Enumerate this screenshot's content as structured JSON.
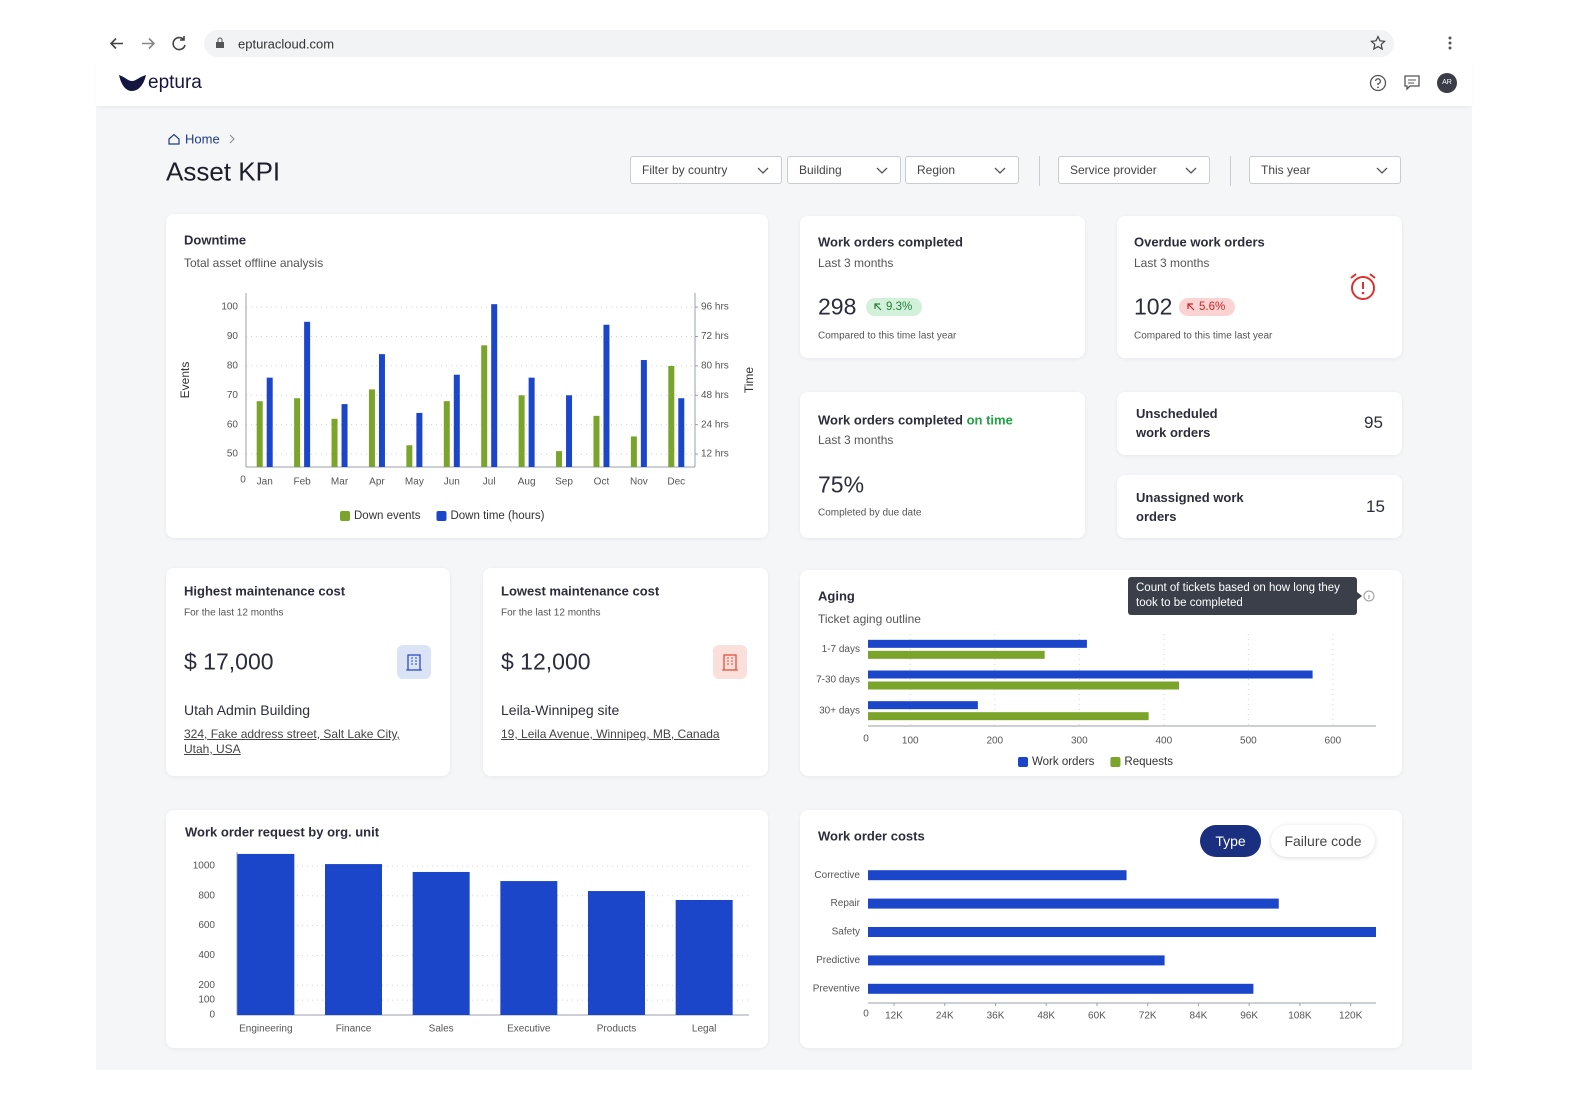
{
  "browser": {
    "url": "epturacloud.com"
  },
  "header": {
    "logo": "eptura",
    "avatar": "AR"
  },
  "breadcrumb": "Home",
  "title": "Asset KPI",
  "filters": [
    "Filter by country",
    "Building",
    "Region",
    "Service provider",
    "This year"
  ],
  "downtime": {
    "type": "bar",
    "title": "Downtime",
    "subtitle": "Total asset offline analysis",
    "y_label": "Events",
    "y2_label": "Time",
    "origin_label": "0",
    "categories": [
      "Jan",
      "Feb",
      "Mar",
      "Apr",
      "May",
      "Jun",
      "Jul",
      "Aug",
      "Sep",
      "Oct",
      "Nov",
      "Dec"
    ],
    "series": [
      {
        "name": "Down events",
        "color": "#7aa52a",
        "values": [
          68,
          69,
          62,
          72,
          53,
          68,
          87,
          70,
          51,
          63,
          56,
          80
        ]
      },
      {
        "name": "Down time (hours)",
        "color": "#1c46c9",
        "values": [
          76,
          95,
          67,
          84,
          64,
          77,
          101,
          76,
          70,
          94,
          82,
          69
        ]
      }
    ],
    "ylim": [
      45.6,
      104.8
    ],
    "yticks": [
      50,
      60,
      70,
      80,
      90,
      100
    ],
    "y2lim": [
      45.6,
      104.8
    ],
    "y2ticks": [
      {
        "value": 50,
        "label": "12 hrs"
      },
      {
        "value": 60,
        "label": "24 hrs"
      },
      {
        "value": 70,
        "label": "48 hrs"
      },
      {
        "value": 80,
        "label": "80 hrs"
      },
      {
        "value": 90,
        "label": "72 hrs"
      },
      {
        "value": 100,
        "label": "96 hrs"
      }
    ],
    "grid": true,
    "legend": "bottom"
  },
  "kpis": {
    "completed": {
      "title": "Work orders completed",
      "subtitle": "Last 3 months",
      "value": "298",
      "change": "9.3%",
      "note": "Compared to this time last year"
    },
    "overdue": {
      "title": "Overdue work orders",
      "subtitle": "Last 3 months",
      "value": "102",
      "change": "5.6%",
      "note": "Compared to this time last year"
    },
    "on_time": {
      "title": "Work orders completed",
      "title_highlight": "on time",
      "subtitle": "Last 3 months",
      "value": "75%",
      "note": "Completed by due date"
    },
    "unscheduled": {
      "title": "Unscheduled work orders",
      "value": "95"
    },
    "unassigned": {
      "title": "Unassigned work orders",
      "value": "15"
    }
  },
  "cost_cards": [
    {
      "title": "Highest maintenance cost",
      "subtitle": "For the last 12 months",
      "value": "$ 17,000",
      "site": "Utah Admin Building",
      "address": "324, Fake address street, Salt Lake City, Utah, USA"
    },
    {
      "title": "Lowest maintenance cost",
      "subtitle": "For the last 12 months",
      "value": "$ 12,000",
      "site": "Leila-Winnipeg site",
      "address": "19, Leila Avenue, Winnipeg, MB, Canada"
    }
  ],
  "aging": {
    "type": "hbar",
    "title": "Aging",
    "subtitle": "Ticket aging outline",
    "tooltip": "Count of tickets based on how long they took to be completed",
    "origin_label": "0",
    "categories": [
      "1-7 days",
      "7-30 days",
      "30+ days"
    ],
    "series": [
      {
        "name": "Work orders",
        "color": "#1c46c9",
        "values": [
          309,
          576,
          180
        ]
      },
      {
        "name": "Requests",
        "color": "#7aa52a",
        "values": [
          259,
          418,
          382
        ]
      }
    ],
    "xlim": [
      50,
      651
    ],
    "xticks": [
      100,
      200,
      300,
      400,
      500,
      600
    ],
    "grid": true,
    "legend": "bottom"
  },
  "org_requests": {
    "type": "bar",
    "title": "Work order request by org. unit",
    "categories": [
      "Engineering",
      "Finance",
      "Sales",
      "Executive",
      "Products",
      "Legal"
    ],
    "values": [
      1081,
      1013,
      960,
      899,
      832,
      772
    ],
    "color": "#1c46c9",
    "ylim": [
      0,
      1094
    ],
    "yticks": [
      0,
      100,
      200,
      400,
      600,
      800,
      1000
    ],
    "grid": true
  },
  "costs": {
    "type": "hbar",
    "title": "Work order costs",
    "toggle": [
      "Type",
      "Failure code"
    ],
    "origin_label": "0",
    "categories": [
      "Corrective",
      "Repair",
      "Safety",
      "Predictive",
      "Preventive"
    ],
    "values": [
      67000,
      103000,
      126000,
      76000,
      97000
    ],
    "color": "#1c46c9",
    "xlim": [
      5846,
      126000
    ],
    "xticks": [
      {
        "value": 12000,
        "label": "12K"
      },
      {
        "value": 24000,
        "label": "24K"
      },
      {
        "value": 36000,
        "label": "36K"
      },
      {
        "value": 48000,
        "label": "48K"
      },
      {
        "value": 60000,
        "label": "60K"
      },
      {
        "value": 72000,
        "label": "72K"
      },
      {
        "value": 84000,
        "label": "84K"
      },
      {
        "value": 96000,
        "label": "96K"
      },
      {
        "value": 108000,
        "label": "108K"
      },
      {
        "value": 120000,
        "label": "120K"
      }
    ],
    "grid": false
  }
}
